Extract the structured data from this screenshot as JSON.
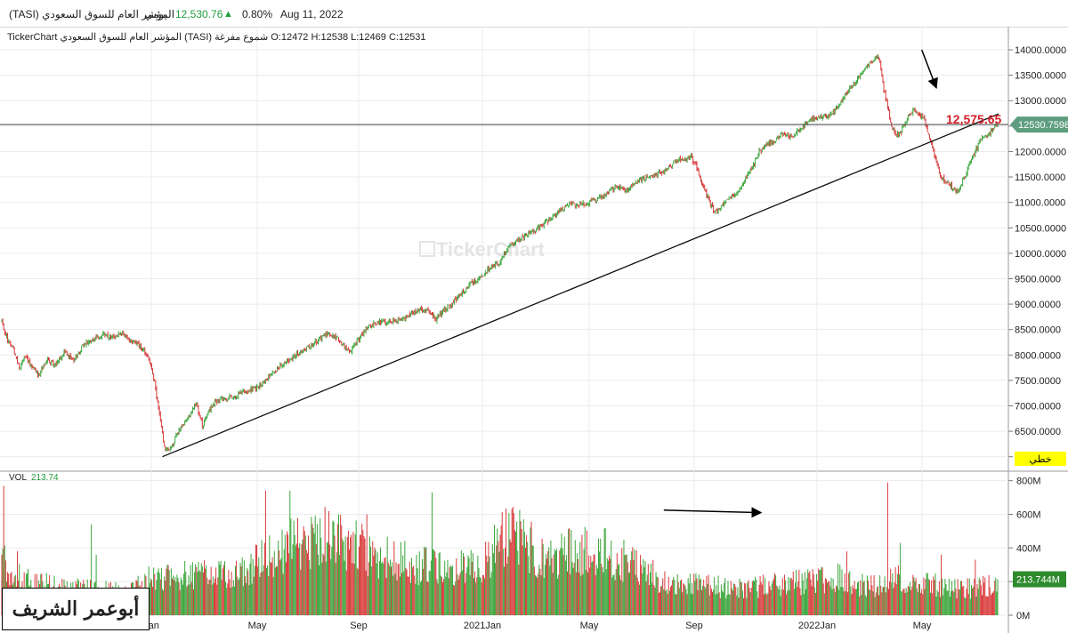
{
  "header": {
    "instrument": "المؤشر العام للسوق السعودي (TASI)",
    "period": "يومي",
    "price": "12,530.76",
    "arrow_icon": "triangle-up-icon",
    "change": "0.80%",
    "date": "Aug 11, 2022"
  },
  "info_line": "TickerChart المؤشر العام للسوق السعودي (TASI) شموع مفرغة O:12472 H:12538 L:12469 C:12531",
  "watermark": "TickerChart",
  "price_panel": {
    "last_price_label": "12530.7598",
    "annotation_price": "12,575.65",
    "mode_label": "خطي"
  },
  "volume_panel": {
    "label": "VOL",
    "value": "213.74",
    "last_volume_label": "213.744M"
  },
  "signature": "أبوعمر الشريف",
  "colors": {
    "up": "#3aa53a",
    "down": "#d83a3a",
    "annotation": "#d4202a",
    "mode_bg": "#ffff00",
    "last_price_bg": "#5e9e7e",
    "last_volume_bg": "#2e8b2e"
  },
  "chart_data": [
    {
      "type": "candlestick",
      "title": "",
      "xlabel": "",
      "ylabel": "",
      "x_ticks": [
        "Jan",
        "May",
        "Sep",
        "2021Jan",
        "May",
        "Sep",
        "2022Jan",
        "May"
      ],
      "y_ticks": [
        "6000.0000",
        "6500.0000",
        "7000.0000",
        "7500.0000",
        "8000.0000",
        "8500.0000",
        "9000.0000",
        "9500.0000",
        "10000.0000",
        "10500.0000",
        "11000.0000",
        "11500.0000",
        "12000.0000",
        "12500.0000",
        "13000.0000",
        "13500.0000",
        "14000.0000"
      ],
      "ylim": [
        5750,
        14350
      ],
      "close_anchors": [
        [
          0,
          8650
        ],
        [
          6,
          8300
        ],
        [
          12,
          8100
        ],
        [
          18,
          7750
        ],
        [
          24,
          8000
        ],
        [
          30,
          7800
        ],
        [
          38,
          7600
        ],
        [
          46,
          7900
        ],
        [
          55,
          7800
        ],
        [
          64,
          8050
        ],
        [
          74,
          7900
        ],
        [
          84,
          8200
        ],
        [
          94,
          8300
        ],
        [
          104,
          8400
        ],
        [
          114,
          8350
        ],
        [
          124,
          8450
        ],
        [
          130,
          8300
        ],
        [
          138,
          8250
        ],
        [
          146,
          8100
        ],
        [
          152,
          7900
        ],
        [
          157,
          7450
        ],
        [
          162,
          6800
        ],
        [
          168,
          6100
        ],
        [
          174,
          6200
        ],
        [
          182,
          6500
        ],
        [
          192,
          6800
        ],
        [
          200,
          7050
        ],
        [
          206,
          6600
        ],
        [
          212,
          6900
        ],
        [
          220,
          7100
        ],
        [
          230,
          7150
        ],
        [
          240,
          7200
        ],
        [
          250,
          7300
        ],
        [
          262,
          7350
        ],
        [
          274,
          7550
        ],
        [
          286,
          7800
        ],
        [
          298,
          7950
        ],
        [
          310,
          8100
        ],
        [
          322,
          8250
        ],
        [
          334,
          8400
        ],
        [
          344,
          8350
        ],
        [
          352,
          8150
        ],
        [
          358,
          8050
        ],
        [
          366,
          8300
        ],
        [
          376,
          8550
        ],
        [
          386,
          8650
        ],
        [
          398,
          8650
        ],
        [
          410,
          8700
        ],
        [
          420,
          8800
        ],
        [
          430,
          8900
        ],
        [
          440,
          8850
        ],
        [
          446,
          8700
        ],
        [
          452,
          8850
        ],
        [
          462,
          9000
        ],
        [
          472,
          9200
        ],
        [
          482,
          9400
        ],
        [
          492,
          9500
        ],
        [
          500,
          9700
        ],
        [
          510,
          9800
        ],
        [
          518,
          10050
        ],
        [
          526,
          10200
        ],
        [
          534,
          10300
        ],
        [
          542,
          10400
        ],
        [
          552,
          10500
        ],
        [
          562,
          10650
        ],
        [
          572,
          10800
        ],
        [
          582,
          10950
        ],
        [
          592,
          10950
        ],
        [
          602,
          11000
        ],
        [
          612,
          11050
        ],
        [
          622,
          11200
        ],
        [
          632,
          11300
        ],
        [
          642,
          11250
        ],
        [
          652,
          11400
        ],
        [
          662,
          11500
        ],
        [
          672,
          11550
        ],
        [
          682,
          11650
        ],
        [
          692,
          11800
        ],
        [
          700,
          11850
        ],
        [
          708,
          11900
        ],
        [
          714,
          11700
        ],
        [
          720,
          11350
        ],
        [
          726,
          11050
        ],
        [
          732,
          10800
        ],
        [
          738,
          10900
        ],
        [
          746,
          11050
        ],
        [
          754,
          11150
        ],
        [
          762,
          11400
        ],
        [
          770,
          11650
        ],
        [
          778,
          12000
        ],
        [
          786,
          12150
        ],
        [
          794,
          12200
        ],
        [
          802,
          12350
        ],
        [
          810,
          12300
        ],
        [
          818,
          12400
        ],
        [
          826,
          12550
        ],
        [
          834,
          12650
        ],
        [
          842,
          12700
        ],
        [
          850,
          12700
        ],
        [
          858,
          12850
        ],
        [
          866,
          13100
        ],
        [
          874,
          13300
        ],
        [
          880,
          13450
        ],
        [
          886,
          13650
        ],
        [
          892,
          13750
        ],
        [
          898,
          13850
        ],
        [
          902,
          13800
        ],
        [
          906,
          13200
        ],
        [
          910,
          12900
        ],
        [
          914,
          12500
        ],
        [
          918,
          12300
        ],
        [
          924,
          12400
        ],
        [
          930,
          12650
        ],
        [
          936,
          12800
        ],
        [
          942,
          12750
        ],
        [
          948,
          12600
        ],
        [
          954,
          12200
        ],
        [
          960,
          11800
        ],
        [
          964,
          11500
        ],
        [
          970,
          11400
        ],
        [
          976,
          11300
        ],
        [
          982,
          11200
        ],
        [
          988,
          11450
        ],
        [
          994,
          11750
        ],
        [
          1000,
          12000
        ],
        [
          1006,
          12250
        ],
        [
          1012,
          12300
        ],
        [
          1018,
          12450
        ],
        [
          1022,
          12531
        ]
      ],
      "last_close": 12530.7598,
      "horizontal_line": 12530.76,
      "trendline": [
        [
          165,
          6000
        ],
        [
          1024,
          12740
        ]
      ],
      "annotation_arrow": [
        [
          945,
          14000
        ],
        [
          960,
          13250
        ]
      ]
    },
    {
      "type": "bar",
      "title": "",
      "series_name": "VOL",
      "y_ticks": [
        "0M",
        "200M",
        "400M",
        "600M",
        "800M"
      ],
      "ylim": [
        0,
        830
      ],
      "volume_anchors": [
        [
          0,
          380
        ],
        [
          20,
          220
        ],
        [
          60,
          180
        ],
        [
          100,
          160
        ],
        [
          130,
          150
        ],
        [
          150,
          230
        ],
        [
          170,
          260
        ],
        [
          200,
          250
        ],
        [
          230,
          260
        ],
        [
          260,
          330
        ],
        [
          290,
          440
        ],
        [
          310,
          480
        ],
        [
          330,
          520
        ],
        [
          350,
          480
        ],
        [
          370,
          420
        ],
        [
          400,
          360
        ],
        [
          430,
          320
        ],
        [
          460,
          300
        ],
        [
          490,
          300
        ],
        [
          510,
          470
        ],
        [
          525,
          520
        ],
        [
          540,
          450
        ],
        [
          560,
          350
        ],
        [
          590,
          420
        ],
        [
          620,
          400
        ],
        [
          640,
          350
        ],
        [
          660,
          300
        ],
        [
          680,
          220
        ],
        [
          720,
          190
        ],
        [
          760,
          170
        ],
        [
          800,
          200
        ],
        [
          840,
          230
        ],
        [
          860,
          240
        ],
        [
          880,
          200
        ],
        [
          900,
          180
        ],
        [
          920,
          240
        ],
        [
          940,
          210
        ],
        [
          960,
          190
        ],
        [
          980,
          180
        ],
        [
          1000,
          170
        ],
        [
          1023,
          200
        ]
      ],
      "spikes": [
        [
          2,
          770
        ],
        [
          16,
          380
        ],
        [
          92,
          540
        ],
        [
          97,
          360
        ],
        [
          271,
          740
        ],
        [
          296,
          740
        ],
        [
          375,
          600
        ],
        [
          442,
          730
        ],
        [
          868,
          380
        ],
        [
          910,
          790
        ],
        [
          923,
          430
        ],
        [
          965,
          360
        ],
        [
          1000,
          330
        ]
      ],
      "last_value": 213.744,
      "annotation_arrow": [
        [
          680,
          625
        ],
        [
          780,
          610
        ]
      ]
    }
  ]
}
